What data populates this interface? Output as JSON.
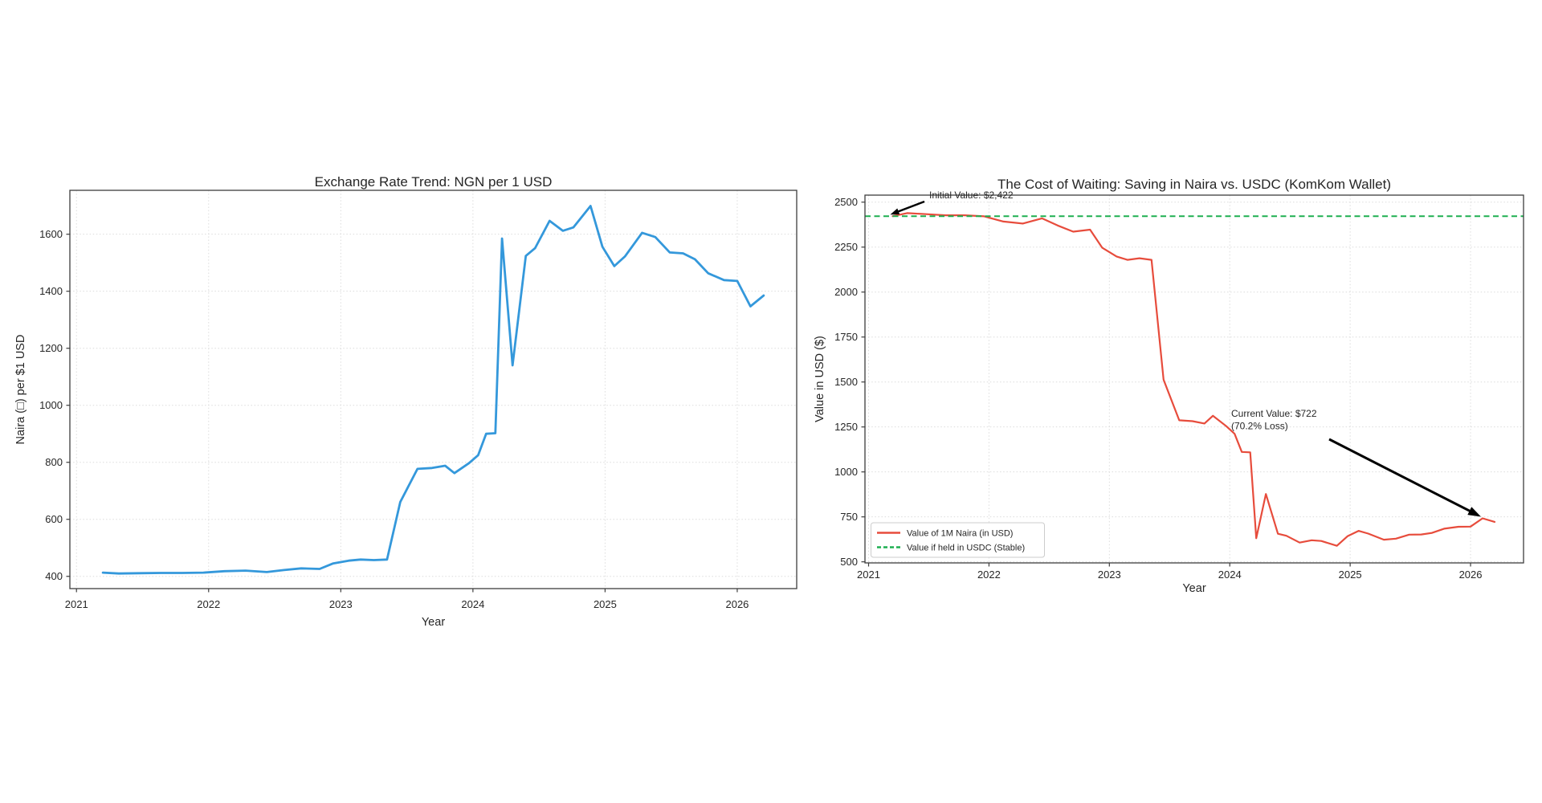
{
  "page": {
    "background": "#ffffff",
    "description_left_title": "Exchange Rate Trend: NGN per 1 USD",
    "description_right_title": "The Cost of Waiting: Saving in Naira vs. USDC (KomKom Wallet)"
  },
  "chart_data": [
    {
      "type": "line",
      "title": "Exchange Rate Trend: NGN per 1 USD",
      "xlabel": "Year",
      "ylabel": "Naira (□) per $1 USD",
      "xticks": [
        2021,
        2022,
        2023,
        2024,
        2025,
        2026
      ],
      "yticks": [
        400,
        600,
        800,
        1000,
        1200,
        1400,
        1600
      ],
      "xlim": [
        2020.95,
        2026.45
      ],
      "ylim": [
        357,
        1754
      ],
      "grid": true,
      "legend_position": "none",
      "series": [
        {
          "name": "NGN per 1 USD",
          "color": "#3498db",
          "line_width": 2.8,
          "x": [
            2021.2,
            2021.32,
            2021.48,
            2021.64,
            2021.8,
            2021.96,
            2022.12,
            2022.28,
            2022.44,
            2022.57,
            2022.7,
            2022.84,
            2022.94,
            2023.06,
            2023.15,
            2023.25,
            2023.35,
            2023.45,
            2023.58,
            2023.69,
            2023.79,
            2023.86,
            2023.97,
            2024.04,
            2024.1,
            2024.17,
            2024.22,
            2024.3,
            2024.4,
            2024.47,
            2024.58,
            2024.68,
            2024.76,
            2024.89,
            2024.98,
            2025.07,
            2025.15,
            2025.28,
            2025.38,
            2025.49,
            2025.59,
            2025.68,
            2025.78,
            2025.9,
            2026.0,
            2026.1,
            2026.2
          ],
          "values": [
            413,
            410,
            411,
            412,
            412,
            413,
            418,
            420,
            415,
            422,
            428,
            426,
            445,
            455,
            459,
            457,
            459,
            661,
            777,
            780,
            788,
            762,
            797,
            825,
            900,
            902,
            1585,
            1140,
            1524,
            1551,
            1647,
            1612,
            1624,
            1699,
            1556,
            1488,
            1522,
            1605,
            1590,
            1536,
            1533,
            1512,
            1463,
            1439,
            1436,
            1347,
            1385
          ]
        }
      ]
    },
    {
      "type": "line",
      "title": "The Cost of Waiting: Saving in Naira vs. USDC (KomKom Wallet)",
      "xlabel": "Year",
      "ylabel": "Value in USD ($)",
      "xticks": [
        2021,
        2022,
        2023,
        2024,
        2025,
        2026
      ],
      "yticks": [
        500,
        750,
        1000,
        1250,
        1500,
        1750,
        2000,
        2250,
        2500
      ],
      "xlim": [
        2020.97,
        2026.44
      ],
      "ylim": [
        494,
        2539
      ],
      "grid": true,
      "legend_position": "lower left",
      "series": [
        {
          "name": "Value of 1M Naira (in USD)",
          "color": "#e74c3c",
          "line_width": 2.2,
          "style": "solid",
          "x": [
            2021.2,
            2021.32,
            2021.48,
            2021.64,
            2021.8,
            2021.96,
            2022.12,
            2022.28,
            2022.44,
            2022.57,
            2022.7,
            2022.84,
            2022.94,
            2023.06,
            2023.15,
            2023.25,
            2023.35,
            2023.45,
            2023.58,
            2023.69,
            2023.79,
            2023.86,
            2023.97,
            2024.04,
            2024.1,
            2024.17,
            2024.22,
            2024.3,
            2024.4,
            2024.47,
            2024.58,
            2024.68,
            2024.76,
            2024.89,
            2024.98,
            2025.07,
            2025.15,
            2025.28,
            2025.38,
            2025.49,
            2025.59,
            2025.68,
            2025.78,
            2025.9,
            2026.0,
            2026.1,
            2026.2
          ],
          "values": [
            2422,
            2439,
            2433,
            2427,
            2427,
            2421,
            2392,
            2381,
            2410,
            2370,
            2336,
            2347,
            2247,
            2198,
            2179,
            2188,
            2179,
            1513,
            1287,
            1282,
            1269,
            1312,
            1255,
            1212,
            1111,
            1109,
            631,
            877,
            656,
            645,
            607,
            620,
            616,
            589,
            643,
            672,
            657,
            623,
            629,
            651,
            652,
            661,
            684,
            695,
            696,
            742,
            722
          ]
        },
        {
          "name": "Value if held in USDC (Stable)",
          "color": "#1eaf50",
          "line_width": 2.0,
          "style": "dashed",
          "constant_value": 2422
        }
      ],
      "annotations": [
        {
          "id": "initial-value",
          "text_lines": [
            "Initial Value: $2,422"
          ],
          "target_x": 2021.2,
          "target_y": 2422
        },
        {
          "id": "current-value",
          "text_lines": [
            "Current Value: $722",
            "(70.2% Loss)"
          ],
          "target_x": 2026.1,
          "target_y": 742
        }
      ],
      "legend": {
        "entries": [
          "Value of 1M Naira (in USD)",
          "Value if held in USDC (Stable)"
        ]
      }
    }
  ],
  "colors": {
    "blue_line": "#3498db",
    "red_line": "#e74c3c",
    "green_dashed": "#1eaf50",
    "grid": "#dcdcdc",
    "spine": "#3d3d3d",
    "tick_text": "#333333",
    "annotation_arrow": "#000000"
  }
}
